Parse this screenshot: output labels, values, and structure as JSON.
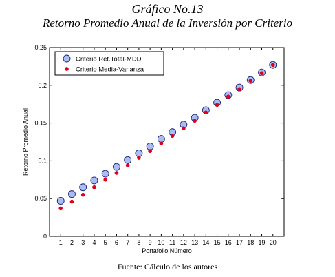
{
  "header": {
    "title": "Gráfico No.13",
    "subtitle": "Retorno Promedio Anual de la Inversión por Criterio"
  },
  "footer": {
    "source": "Fuente: Cálculo de los autores"
  },
  "chart_data": {
    "type": "scatter",
    "title": "",
    "xlabel": "Portafolio Número",
    "ylabel": "Retorno Promedio Anual",
    "xlim": [
      0,
      21
    ],
    "ylim": [
      0,
      0.25
    ],
    "x_ticks": [
      1,
      2,
      3,
      4,
      5,
      6,
      7,
      8,
      9,
      10,
      11,
      12,
      13,
      14,
      15,
      16,
      17,
      18,
      19,
      20
    ],
    "y_ticks": [
      0,
      0.05,
      0.1,
      0.15,
      0.2,
      0.25
    ],
    "y_tick_labels": [
      "0",
      "0.05",
      "0.1",
      "0.15",
      "0.2",
      "0.25"
    ],
    "grid": false,
    "legend_position": "top-left",
    "x": [
      1,
      2,
      3,
      4,
      5,
      6,
      7,
      8,
      9,
      10,
      11,
      12,
      13,
      14,
      15,
      16,
      17,
      18,
      19,
      20
    ],
    "series": [
      {
        "name": "Criterio Ret.Total-MDD",
        "marker": "large-circle",
        "fill": "#aabdf0",
        "stroke": "#1a237e",
        "values": [
          0.047,
          0.056,
          0.065,
          0.074,
          0.083,
          0.092,
          0.101,
          0.11,
          0.119,
          0.129,
          0.138,
          0.148,
          0.157,
          0.167,
          0.177,
          0.187,
          0.197,
          0.207,
          0.217,
          0.227
        ]
      },
      {
        "name": "Criterio Media-Varianza",
        "marker": "small-dot",
        "fill": "#e0001b",
        "stroke": "#e0001b",
        "values": [
          0.037,
          0.046,
          0.055,
          0.065,
          0.075,
          0.084,
          0.094,
          0.104,
          0.113,
          0.123,
          0.133,
          0.143,
          0.153,
          0.164,
          0.174,
          0.185,
          0.195,
          0.206,
          0.216,
          0.227
        ]
      }
    ]
  }
}
